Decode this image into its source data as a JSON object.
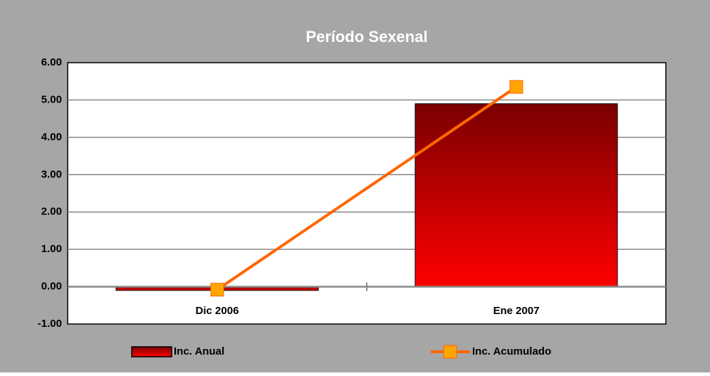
{
  "chart_data": {
    "type": "bar_line",
    "title": "Período Sexenal",
    "categories": [
      "Dic 2006",
      "Ene 2007"
    ],
    "series": [
      {
        "name": "Inc. Anual",
        "type": "bar",
        "color": "#ff0000",
        "values": [
          -0.1,
          4.9
        ]
      },
      {
        "name": "Inc. Acumulado",
        "type": "line",
        "color": "#ff6600",
        "values": [
          -0.08,
          5.35
        ]
      }
    ],
    "ylim": [
      -1,
      6
    ],
    "yticks": [
      {
        "value": -1,
        "label": "-1.00"
      },
      {
        "value": 0,
        "label": "0.00"
      },
      {
        "value": 1,
        "label": "1.00"
      },
      {
        "value": 2,
        "label": "2.00"
      },
      {
        "value": 3,
        "label": "3.00"
      },
      {
        "value": 4,
        "label": "4.00"
      },
      {
        "value": 5,
        "label": "5.00"
      },
      {
        "value": 6,
        "label": "6.00"
      }
    ],
    "grid": true,
    "legend": "bottom"
  }
}
